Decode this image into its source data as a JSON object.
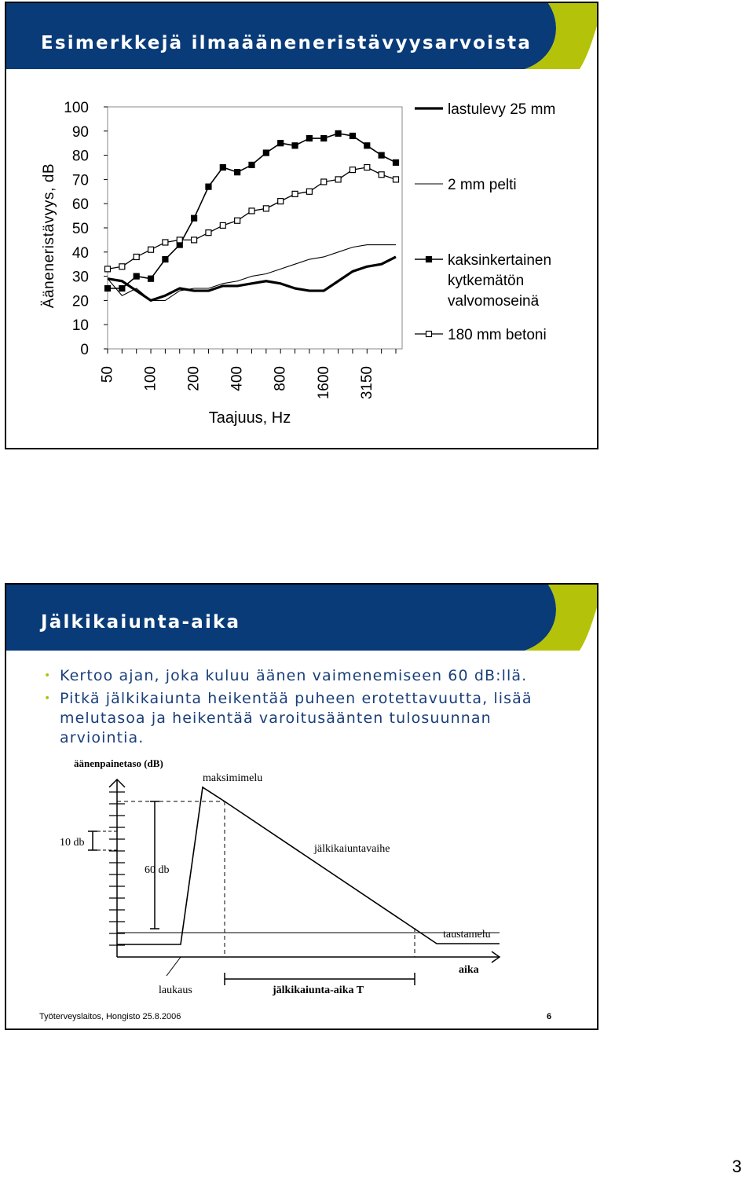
{
  "slide1": {
    "title": "Esimerkkejä ilmaääneneristävyysarvoista"
  },
  "chart_data": {
    "type": "line",
    "title": "",
    "xlabel": "Taajuus, Hz",
    "ylabel": "Ääneneristävyys, dB",
    "ylim": [
      0,
      100
    ],
    "y_ticks": [
      "0",
      "10",
      "20",
      "30",
      "40",
      "50",
      "60",
      "70",
      "80",
      "90",
      "100"
    ],
    "x_tick_labels": [
      "50",
      "100",
      "200",
      "400",
      "800",
      "1600",
      "3150"
    ],
    "x": [
      "50",
      "63",
      "80",
      "100",
      "125",
      "160",
      "200",
      "250",
      "315",
      "400",
      "500",
      "630",
      "800",
      "1000",
      "1250",
      "1600",
      "2000",
      "2500",
      "3150",
      "4000",
      "5000"
    ],
    "legend_position": "right",
    "grid": false,
    "series": [
      {
        "name": "lastulevy 25 mm",
        "style": "thick-line",
        "color": "#000000",
        "values": [
          29,
          28,
          24,
          20,
          22,
          25,
          24,
          24,
          26,
          26,
          27,
          28,
          27,
          25,
          24,
          24,
          28,
          32,
          34,
          35,
          38
        ]
      },
      {
        "name": "2 mm pelti",
        "style": "thin-line",
        "color": "#000000",
        "values": [
          29,
          22,
          25,
          20,
          20,
          24,
          25,
          25,
          27,
          28,
          30,
          31,
          33,
          35,
          37,
          38,
          40,
          42,
          43,
          43,
          43
        ]
      },
      {
        "name": "kaksinkertainen kytkemätön valvomoseinä",
        "style": "filled-square-marker",
        "color": "#000000",
        "values": [
          25,
          25,
          30,
          29,
          37,
          43,
          54,
          67,
          75,
          73,
          76,
          81,
          85,
          84,
          87,
          87,
          89,
          88,
          84,
          80,
          77
        ]
      },
      {
        "name": "180 mm betoni",
        "style": "open-square-marker",
        "color": "#000000",
        "values": [
          33,
          34,
          38,
          41,
          44,
          45,
          45,
          48,
          51,
          53,
          57,
          58,
          61,
          64,
          65,
          69,
          70,
          74,
          75,
          72,
          70
        ]
      }
    ]
  },
  "slide2": {
    "title": "Jälkikaiunta-aika",
    "bullets": [
      "Kertoo ajan, joka kuluu äänen vaimenemiseen 60 dB:llä.",
      "Pitkä jälkikaiunta heikentää puheen erotettavuutta, lisää melutasoa ja heikentää varoitusäänten tulosuunnan arviointia."
    ],
    "diagram": {
      "y_axis_label": "äänenpainetaso (dB)",
      "peak_label": "maksimimelu",
      "step_label": "10 db",
      "drop_label": "60 db",
      "decay_label": "jälkikaiuntavaihe",
      "background_label": "taustamelu",
      "time_axis_label": "aika",
      "impulse_label": "laukaus",
      "rt_label": "jälkikaiunta-aika T"
    },
    "footer_left": "Työterveyslaitos, Hongisto 25.8.2006",
    "footer_right": "6"
  },
  "page_number": "3",
  "colors": {
    "header_blue": "#083b78",
    "accent_green": "#b5c20a",
    "bullet_text": "#1a3f7a"
  }
}
